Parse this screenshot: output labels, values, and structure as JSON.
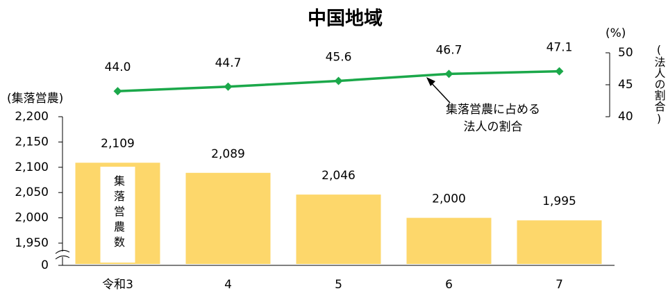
{
  "chart_data": {
    "type": "bar_line",
    "title": "中国地域",
    "y_label": "(集落営農)",
    "y2_unit": "(%)",
    "y2_label": "(法人の割合)",
    "categories": [
      "令和3",
      "4",
      "5",
      "6",
      "7"
    ],
    "ylim": [
      0,
      2200
    ],
    "axis_break": [
      0,
      1950
    ],
    "yticks": [
      0,
      {
        "value": 1950,
        "label": "1,950"
      },
      {
        "value": 2000,
        "label": "2,000"
      },
      {
        "value": 2050,
        "label": "2,050"
      },
      {
        "value": 2100,
        "label": "2,100"
      },
      {
        "value": 2150,
        "label": "2,150"
      },
      {
        "value": 2200,
        "label": "2,200"
      }
    ],
    "y2lim": [
      40,
      50
    ],
    "y2ticks": [
      40,
      45,
      50
    ],
    "series": [
      {
        "name": "集落営農数",
        "type": "bar",
        "color": "#fdd76b",
        "values": [
          2109,
          2089,
          2046,
          2000,
          1995
        ],
        "value_labels": [
          "2,109",
          "2,089",
          "2,046",
          "2,000",
          "1,995"
        ]
      },
      {
        "type": "line",
        "axis": "y2",
        "color": "#1ba84a",
        "values": [
          44.0,
          44.7,
          45.6,
          46.7,
          47.1
        ],
        "value_labels": [
          "44.0",
          "44.7",
          "45.6",
          "46.7",
          "47.1"
        ]
      }
    ],
    "annotations": [
      {
        "lines": [
          "集落営農に占める",
          "法人の割合"
        ]
      }
    ]
  }
}
